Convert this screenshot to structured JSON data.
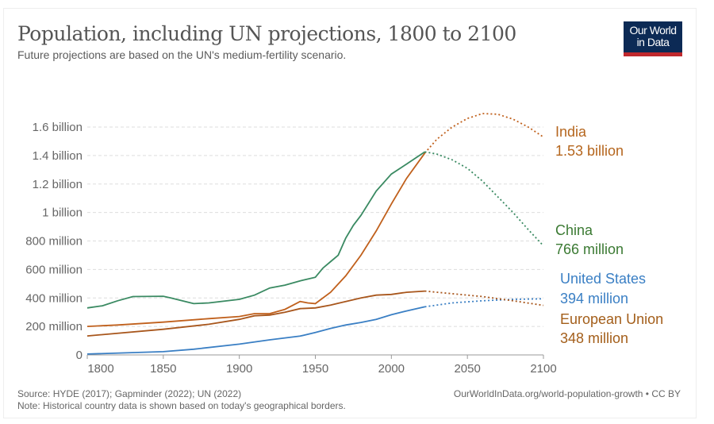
{
  "header": {
    "title": "Population, including UN projections, 1800 to 2100",
    "subtitle": "Future projections are based on the UN's medium-fertility scenario.",
    "logo": "Our World in Data"
  },
  "footer": {
    "source": "Source: HYDE (2017); Gapminder (2022); UN (2022)",
    "note": "Note: Historical country data is shown based on today's geographical borders.",
    "url": "OurWorldInData.org/world-population-growth • CC BY"
  },
  "chart_data": {
    "type": "line",
    "title": "Population, including UN projections, 1800 to 2100",
    "xlim": [
      1800,
      2100
    ],
    "ylim": [
      0,
      1600
    ],
    "x_ticks": [
      1800,
      1850,
      1900,
      1950,
      2000,
      2050,
      2100
    ],
    "y_ticks": [
      {
        "v": 0,
        "label": "0"
      },
      {
        "v": 200,
        "label": "200 million"
      },
      {
        "v": 400,
        "label": "400 million"
      },
      {
        "v": 600,
        "label": "600 million"
      },
      {
        "v": 800,
        "label": "800 million"
      },
      {
        "v": 1000,
        "label": "1 billion"
      },
      {
        "v": 1200,
        "label": "1.2 billion"
      },
      {
        "v": 1400,
        "label": "1.4 billion"
      },
      {
        "v": 1600,
        "label": "1.6 billion"
      }
    ],
    "projection_start": 2022,
    "unit": "million",
    "series": [
      {
        "name": "India",
        "end_label": "1.53 billion",
        "color": "#c0601c",
        "label_color": "#b5661e",
        "points": [
          [
            1800,
            200
          ],
          [
            1820,
            210
          ],
          [
            1850,
            230
          ],
          [
            1880,
            255
          ],
          [
            1900,
            270
          ],
          [
            1910,
            290
          ],
          [
            1920,
            290
          ],
          [
            1930,
            320
          ],
          [
            1940,
            375
          ],
          [
            1945,
            365
          ],
          [
            1950,
            360
          ],
          [
            1960,
            440
          ],
          [
            1970,
            555
          ],
          [
            1980,
            700
          ],
          [
            1990,
            870
          ],
          [
            2000,
            1060
          ],
          [
            2010,
            1240
          ],
          [
            2022,
            1417
          ],
          [
            2030,
            1515
          ],
          [
            2040,
            1600
          ],
          [
            2050,
            1660
          ],
          [
            2060,
            1695
          ],
          [
            2070,
            1690
          ],
          [
            2080,
            1655
          ],
          [
            2090,
            1600
          ],
          [
            2100,
            1530
          ]
        ]
      },
      {
        "name": "China",
        "end_label": "766 million",
        "color": "#3a8a62",
        "label_color": "#3b7a33",
        "points": [
          [
            1800,
            330
          ],
          [
            1810,
            345
          ],
          [
            1820,
            380
          ],
          [
            1830,
            410
          ],
          [
            1850,
            412
          ],
          [
            1855,
            400
          ],
          [
            1870,
            360
          ],
          [
            1880,
            365
          ],
          [
            1900,
            390
          ],
          [
            1910,
            420
          ],
          [
            1920,
            470
          ],
          [
            1930,
            490
          ],
          [
            1940,
            520
          ],
          [
            1950,
            545
          ],
          [
            1955,
            610
          ],
          [
            1960,
            655
          ],
          [
            1965,
            700
          ],
          [
            1970,
            820
          ],
          [
            1975,
            910
          ],
          [
            1980,
            980
          ],
          [
            1990,
            1150
          ],
          [
            2000,
            1270
          ],
          [
            2010,
            1340
          ],
          [
            2022,
            1426
          ],
          [
            2030,
            1410
          ],
          [
            2040,
            1370
          ],
          [
            2050,
            1310
          ],
          [
            2060,
            1220
          ],
          [
            2070,
            1110
          ],
          [
            2080,
            1000
          ],
          [
            2090,
            880
          ],
          [
            2100,
            766
          ]
        ]
      },
      {
        "name": "United States",
        "end_label": "394 million",
        "color": "#3a7fc4",
        "label_color": "#3a7fc4",
        "points": [
          [
            1800,
            6
          ],
          [
            1850,
            23
          ],
          [
            1870,
            40
          ],
          [
            1900,
            76
          ],
          [
            1920,
            106
          ],
          [
            1940,
            132
          ],
          [
            1950,
            158
          ],
          [
            1960,
            186
          ],
          [
            1970,
            210
          ],
          [
            1980,
            228
          ],
          [
            1990,
            250
          ],
          [
            2000,
            282
          ],
          [
            2010,
            309
          ],
          [
            2022,
            338
          ],
          [
            2040,
            365
          ],
          [
            2060,
            380
          ],
          [
            2080,
            390
          ],
          [
            2100,
            394
          ]
        ]
      },
      {
        "name": "European Union",
        "end_label": "348 million",
        "color": "#a8561c",
        "label_color": "#a35e1a",
        "points": [
          [
            1800,
            133
          ],
          [
            1850,
            180
          ],
          [
            1880,
            215
          ],
          [
            1900,
            250
          ],
          [
            1910,
            275
          ],
          [
            1920,
            280
          ],
          [
            1930,
            300
          ],
          [
            1940,
            325
          ],
          [
            1950,
            330
          ],
          [
            1960,
            350
          ],
          [
            1970,
            375
          ],
          [
            1980,
            400
          ],
          [
            1990,
            420
          ],
          [
            2000,
            425
          ],
          [
            2010,
            440
          ],
          [
            2022,
            448
          ],
          [
            2040,
            430
          ],
          [
            2060,
            410
          ],
          [
            2080,
            380
          ],
          [
            2100,
            348
          ]
        ]
      }
    ]
  }
}
